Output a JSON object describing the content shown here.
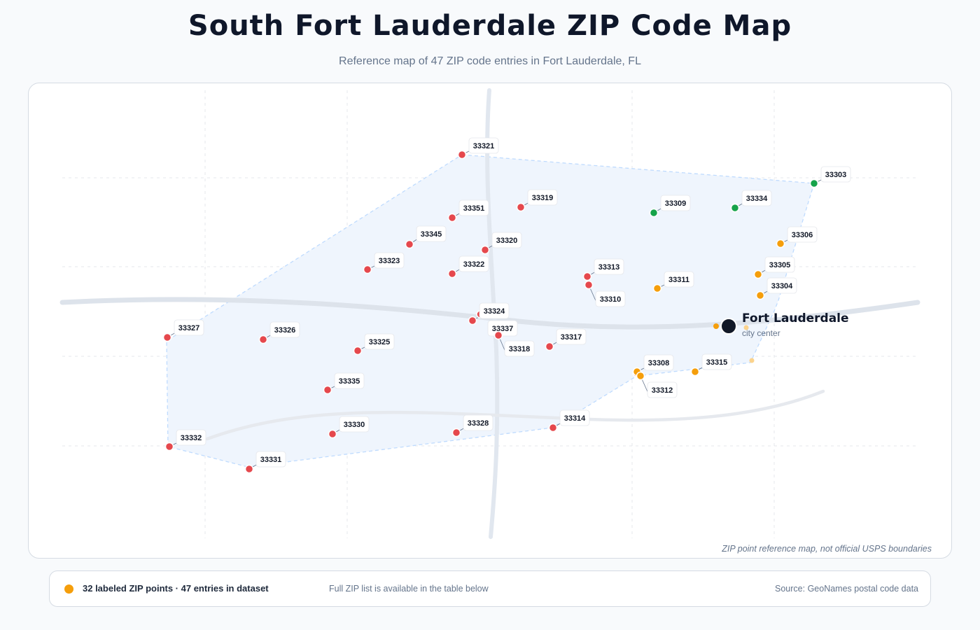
{
  "header": {
    "title": "South Fort Lauderdale ZIP Code Map",
    "subtitle": "Reference map of 47 ZIP code entries in Fort Lauderdale, FL"
  },
  "map": {
    "disclaimer": "ZIP point reference map, not official USPS boundaries",
    "city": {
      "name": "Fort Lauderdale",
      "sublabel": "city center"
    },
    "colors": {
      "red": "#e5484d",
      "orange": "#f59e0b",
      "green": "#16a34a",
      "area_fill": "#eff5fd",
      "area_stroke": "#bfdbfe",
      "road": "#e2e8f0"
    },
    "zip_points": [
      {
        "zip": "33321",
        "color": "red"
      },
      {
        "zip": "33303",
        "color": "green"
      },
      {
        "zip": "33319",
        "color": "red"
      },
      {
        "zip": "33351",
        "color": "red"
      },
      {
        "zip": "33309",
        "color": "green"
      },
      {
        "zip": "33334",
        "color": "green"
      },
      {
        "zip": "33345",
        "color": "red"
      },
      {
        "zip": "33320",
        "color": "red"
      },
      {
        "zip": "33306",
        "color": "orange"
      },
      {
        "zip": "33323",
        "color": "red"
      },
      {
        "zip": "33322",
        "color": "red"
      },
      {
        "zip": "33313",
        "color": "red"
      },
      {
        "zip": "33305",
        "color": "orange"
      },
      {
        "zip": "33311",
        "color": "orange"
      },
      {
        "zip": "33304",
        "color": "orange"
      },
      {
        "zip": "33310",
        "color": "red"
      },
      {
        "zip": "33324",
        "color": "red"
      },
      {
        "zip": "33327",
        "color": "red"
      },
      {
        "zip": "33326",
        "color": "red"
      },
      {
        "zip": "33337",
        "color": "red"
      },
      {
        "zip": "33317",
        "color": "red"
      },
      {
        "zip": "33318",
        "color": "red"
      },
      {
        "zip": "33325",
        "color": "red"
      },
      {
        "zip": "33308",
        "color": "orange"
      },
      {
        "zip": "33315",
        "color": "orange"
      },
      {
        "zip": "33312",
        "color": "orange"
      },
      {
        "zip": "33335",
        "color": "red"
      },
      {
        "zip": "33314",
        "color": "red"
      },
      {
        "zip": "33330",
        "color": "red"
      },
      {
        "zip": "33328",
        "color": "red"
      },
      {
        "zip": "33332",
        "color": "red"
      },
      {
        "zip": "33331",
        "color": "red"
      }
    ]
  },
  "legend": {
    "main": "32 labeled ZIP points · 47 entries in dataset",
    "note": "Full ZIP list is available in the table below",
    "source": "Source: GeoNames postal code data",
    "dot_color": "#f59e0b"
  }
}
